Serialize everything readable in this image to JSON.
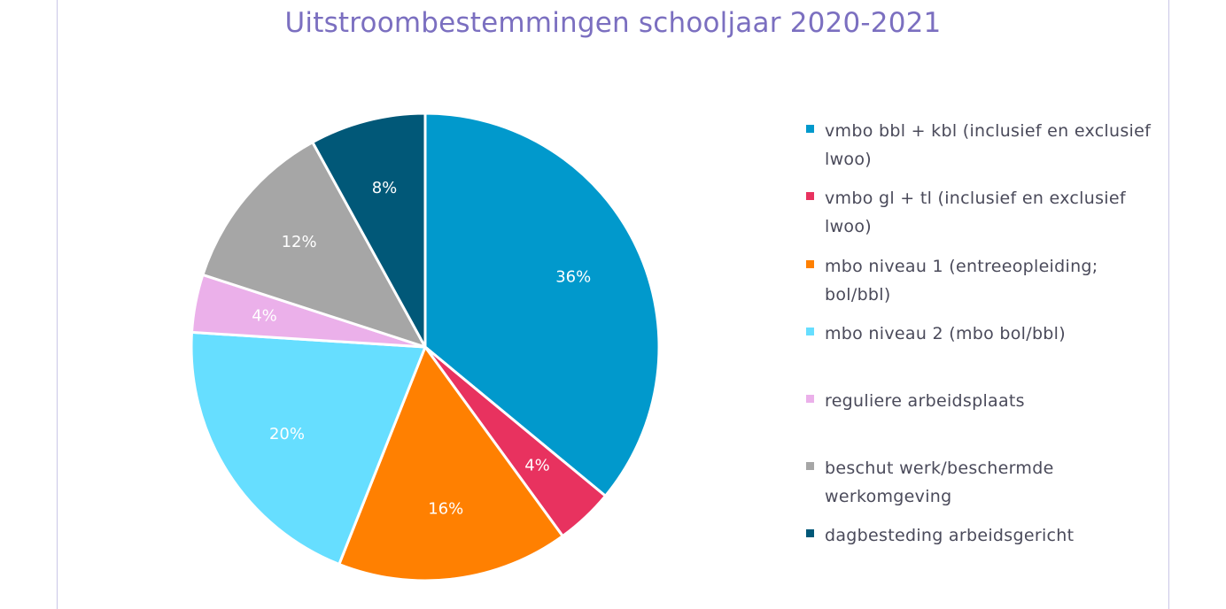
{
  "chart_data": {
    "type": "pie",
    "title": "Uitstroombestemmingen schooljaar 2020-2021",
    "categories": [
      "vmbo bbl + kbl (inclusief en exclusief lwoo)",
      "vmbo gl + tl (inclusief en exclusief lwoo)",
      "mbo niveau 1 (entreeopleiding; bol/bbl)",
      "mbo niveau 2 (mbo bol/bbl)",
      "reguliere arbeidsplaats",
      "beschut werk/beschermde werkomgeving",
      "dagbesteding arbeidsgericht"
    ],
    "values": [
      36,
      4,
      16,
      20,
      4,
      12,
      8
    ],
    "labels": [
      "36%",
      "4%",
      "16%",
      "20%",
      "4%",
      "12%",
      "8%"
    ],
    "colors": [
      "#0199cc",
      "#e8325f",
      "#ff8001",
      "#66deff",
      "#ebb0ea",
      "#a6a6a6",
      "#015878"
    ],
    "legend_position": "right"
  }
}
